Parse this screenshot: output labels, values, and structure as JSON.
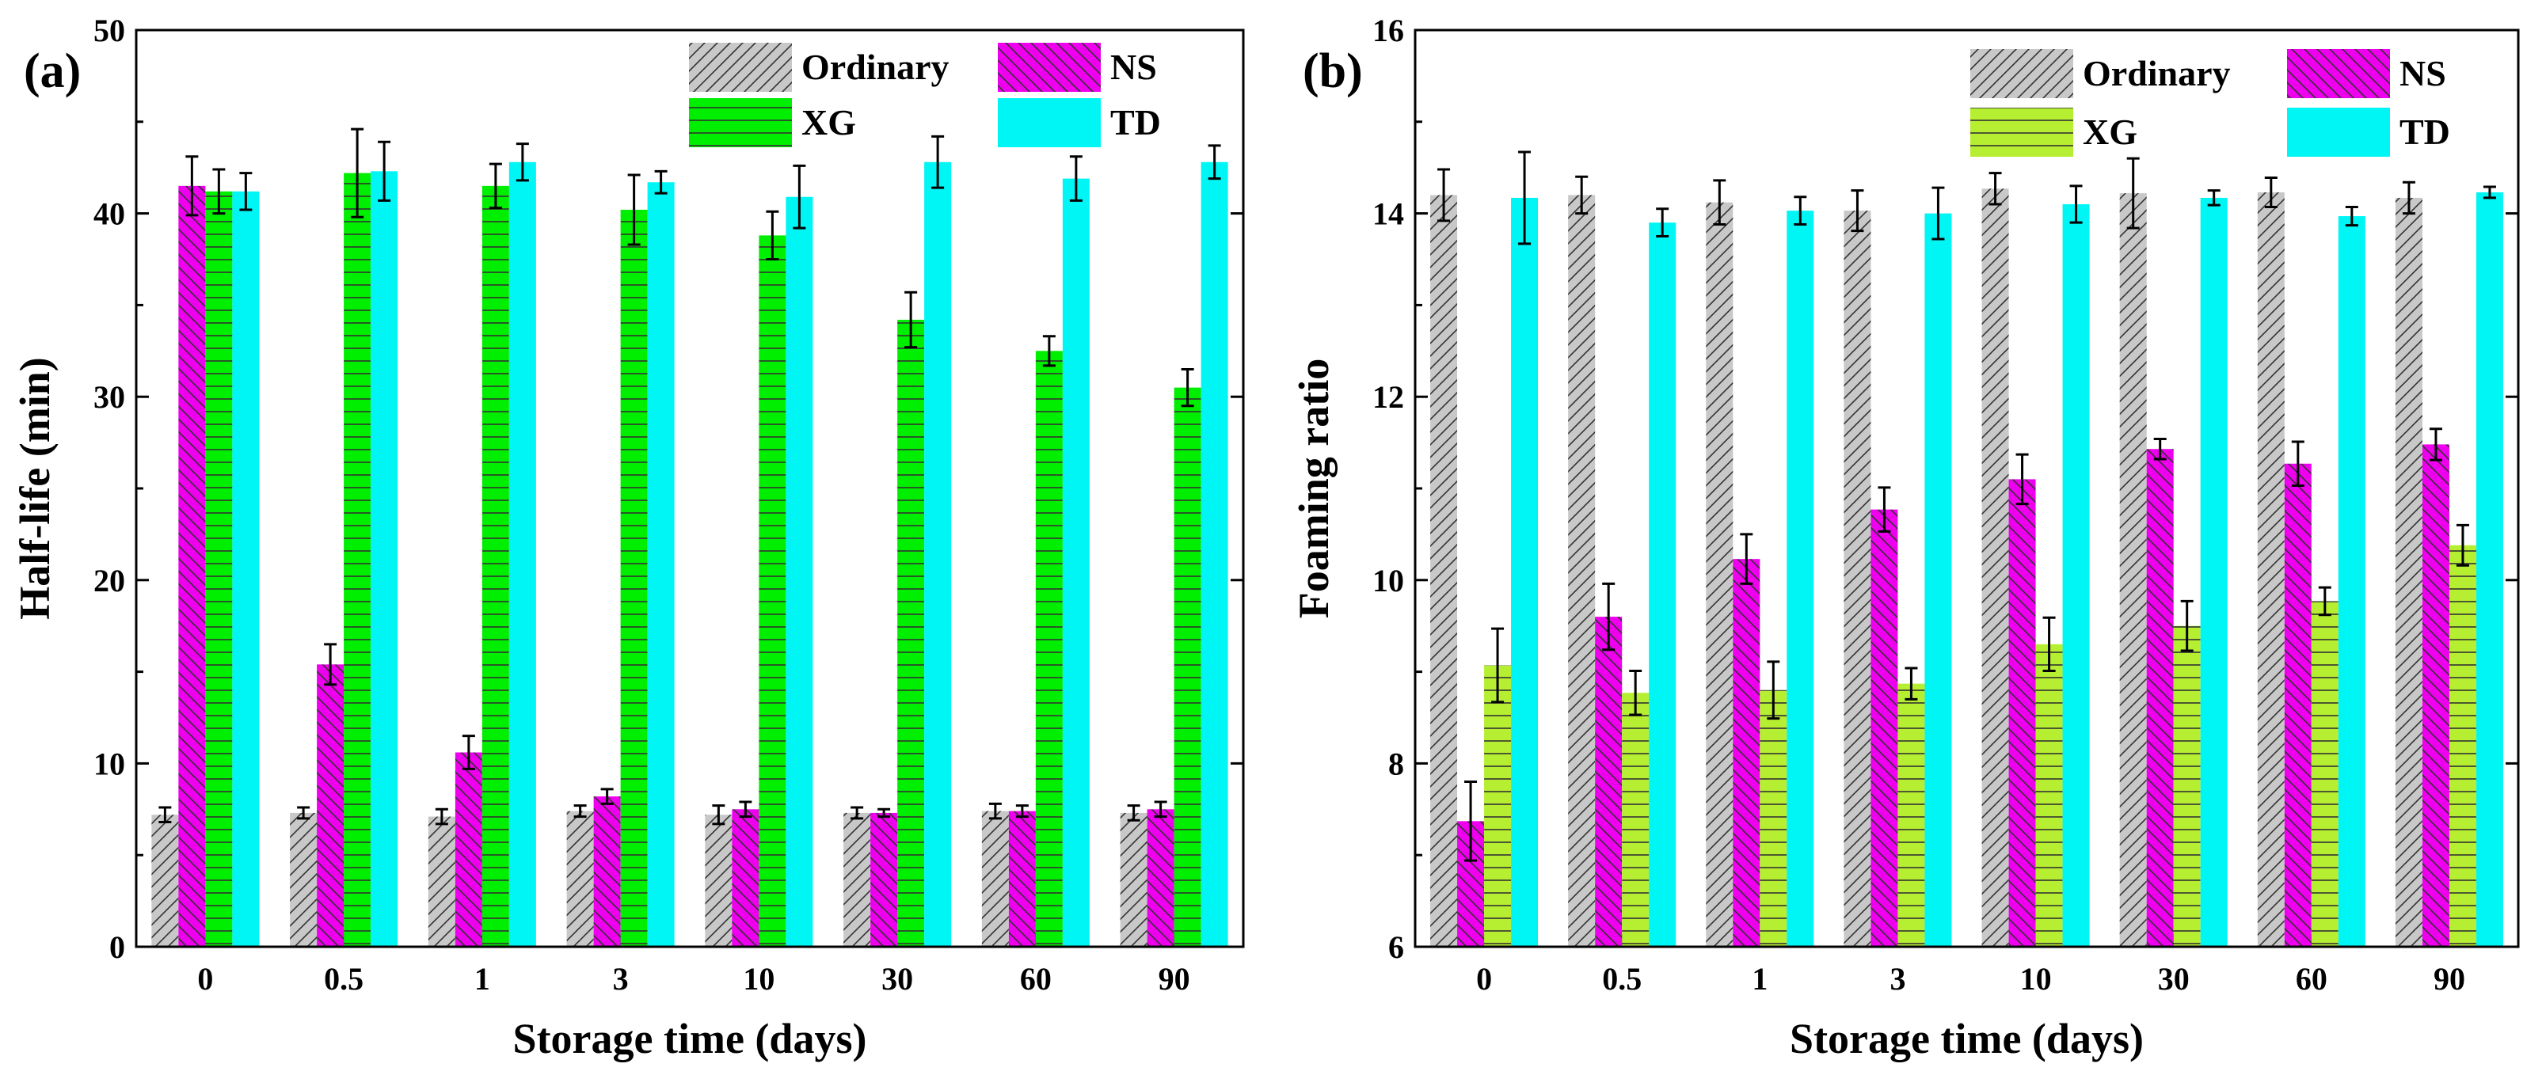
{
  "chart_data": [
    {
      "type": "bar",
      "panel_label": "(a)",
      "xlabel": "Storage time (days)",
      "ylabel": "Half-life (min)",
      "ylim": [
        0,
        50
      ],
      "yticks": [
        0,
        10,
        20,
        30,
        40,
        50
      ],
      "categories": [
        "0",
        "0.5",
        "1",
        "3",
        "10",
        "30",
        "60",
        "90"
      ],
      "series": [
        {
          "name": "Ordinary",
          "color": "#c8c8c8",
          "pattern": "diagonal",
          "values": [
            7.2,
            7.3,
            7.1,
            7.4,
            7.2,
            7.3,
            7.4,
            7.3
          ],
          "errors": [
            0.4,
            0.3,
            0.4,
            0.3,
            0.5,
            0.3,
            0.4,
            0.4
          ]
        },
        {
          "name": "NS",
          "color": "#ee00ee",
          "pattern": "antidiagonal",
          "values": [
            41.5,
            15.4,
            10.6,
            8.2,
            7.5,
            7.3,
            7.4,
            7.5
          ],
          "errors": [
            1.6,
            1.1,
            0.9,
            0.4,
            0.4,
            0.2,
            0.3,
            0.4
          ]
        },
        {
          "name": "XG",
          "color": "#00ee00",
          "pattern": "horizontal",
          "values": [
            41.2,
            42.2,
            41.5,
            40.2,
            38.8,
            34.2,
            32.5,
            30.5
          ],
          "errors": [
            1.2,
            2.4,
            1.2,
            1.9,
            1.3,
            1.5,
            0.8,
            1.0
          ]
        },
        {
          "name": "TD",
          "color": "#00f5f5",
          "pattern": "solid",
          "values": [
            41.2,
            42.3,
            42.8,
            41.7,
            40.9,
            42.8,
            41.9,
            42.8
          ],
          "errors": [
            1.0,
            1.6,
            1.0,
            0.6,
            1.7,
            1.4,
            1.2,
            0.9
          ]
        }
      ]
    },
    {
      "type": "bar",
      "panel_label": "(b)",
      "xlabel": "Storage time (days)",
      "ylabel": "Foaming ratio",
      "ylim": [
        6,
        16
      ],
      "yticks": [
        6,
        8,
        10,
        12,
        14,
        16
      ],
      "categories": [
        "0",
        "0.5",
        "1",
        "3",
        "10",
        "30",
        "60",
        "90"
      ],
      "series": [
        {
          "name": "Ordinary",
          "color": "#c8c8c8",
          "pattern": "diagonal",
          "values": [
            14.2,
            14.2,
            14.12,
            14.03,
            14.27,
            14.22,
            14.23,
            14.17
          ],
          "errors": [
            0.28,
            0.2,
            0.24,
            0.22,
            0.17,
            0.38,
            0.16,
            0.17
          ]
        },
        {
          "name": "NS",
          "color": "#ee00ee",
          "pattern": "antidiagonal",
          "values": [
            7.37,
            9.6,
            10.23,
            10.77,
            11.1,
            11.43,
            11.27,
            11.48
          ],
          "errors": [
            0.43,
            0.36,
            0.27,
            0.24,
            0.27,
            0.11,
            0.24,
            0.17
          ]
        },
        {
          "name": "XG",
          "color": "#b6ee32",
          "pattern": "horizontal",
          "values": [
            9.07,
            8.77,
            8.8,
            8.87,
            9.3,
            9.5,
            9.77,
            10.38
          ],
          "errors": [
            0.4,
            0.24,
            0.31,
            0.17,
            0.29,
            0.27,
            0.15,
            0.22
          ]
        },
        {
          "name": "TD",
          "color": "#00f5f5",
          "pattern": "solid",
          "values": [
            14.17,
            13.9,
            14.03,
            14.0,
            14.1,
            14.17,
            13.97,
            14.23
          ],
          "errors": [
            0.5,
            0.15,
            0.15,
            0.28,
            0.2,
            0.08,
            0.1,
            0.06
          ]
        }
      ]
    }
  ]
}
